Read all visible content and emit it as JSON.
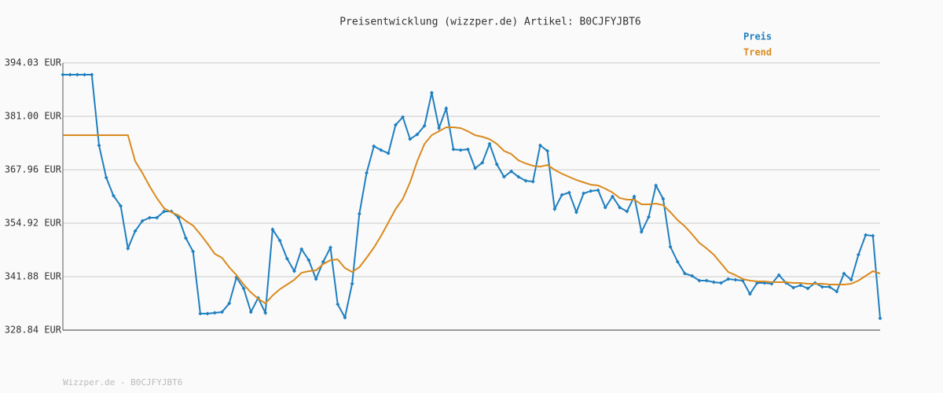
{
  "chart_data": {
    "type": "line",
    "title": "Preisentwicklung (wizzper.de) Artikel: B0CJFYJBT6",
    "footer": "Wizzper.de - B0CJFYJBT6",
    "ylim": [
      328.84,
      394.03
    ],
    "yticks": [
      {
        "value": 328.84,
        "label": "328.84 EUR"
      },
      {
        "value": 341.88,
        "label": "341.88 EUR"
      },
      {
        "value": 354.92,
        "label": "354.92 EUR"
      },
      {
        "value": 367.96,
        "label": "367.96 EUR"
      },
      {
        "value": 381.0,
        "label": "381.00 EUR"
      },
      {
        "value": 394.03,
        "label": "394.03 EUR"
      }
    ],
    "grid": true,
    "legend": "top-right",
    "series": [
      {
        "name": "Preis",
        "color": "#1f7fbf",
        "markers": true,
        "values": [
          391.15,
          391.15,
          391.15,
          391.15,
          391.15,
          373.9,
          366.04,
          361.63,
          359.13,
          348.78,
          353.0,
          355.49,
          356.26,
          356.26,
          357.79,
          357.79,
          356.26,
          351.27,
          348.01,
          332.86,
          332.86,
          333.06,
          333.25,
          335.36,
          341.68,
          339.0,
          333.25,
          336.7,
          333.06,
          353.38,
          350.7,
          346.29,
          343.22,
          348.59,
          345.9,
          341.3,
          345.52,
          348.97,
          335.17,
          331.91,
          340.15,
          357.22,
          367.19,
          373.71,
          372.75,
          371.98,
          378.88,
          380.8,
          375.43,
          376.58,
          378.69,
          386.74,
          378.12,
          382.91,
          372.94,
          372.75,
          372.94,
          368.34,
          369.68,
          374.28,
          369.3,
          366.23,
          367.57,
          366.23,
          365.27,
          365.08,
          373.9,
          372.56,
          358.37,
          361.82,
          362.39,
          357.6,
          362.2,
          362.78,
          362.97,
          358.75,
          361.43,
          358.75,
          357.79,
          361.43,
          352.81,
          356.45,
          364.12,
          360.86,
          349.16,
          345.52,
          342.64,
          342.07,
          340.92,
          340.92,
          340.53,
          340.34,
          341.3,
          341.11,
          340.92,
          337.66,
          340.34,
          340.34,
          340.15,
          342.26,
          340.34,
          339.19,
          339.77,
          339.0,
          340.34,
          339.38,
          339.38,
          338.23,
          342.64,
          341.11,
          347.25,
          352.04,
          351.85,
          331.71
        ]
      },
      {
        "name": "Trend",
        "color": "#d98a1f",
        "markers": false,
        "values": [
          376.39,
          376.39,
          376.39,
          376.39,
          376.39,
          376.39,
          376.39,
          376.39,
          376.39,
          376.39,
          370.06,
          367.19,
          363.93,
          361.05,
          358.56,
          357.6,
          356.83,
          355.49,
          354.34,
          352.23,
          349.93,
          347.44,
          346.48,
          344.18,
          342.26,
          339.96,
          338.04,
          336.51,
          335.36,
          337.28,
          338.81,
          339.96,
          341.11,
          342.84,
          343.22,
          343.41,
          344.94,
          345.9,
          346.09,
          343.99,
          343.03,
          344.18,
          346.48,
          348.97,
          351.85,
          355.11,
          358.37,
          360.86,
          364.89,
          370.06,
          374.28,
          376.39,
          377.35,
          378.31,
          378.31,
          378.12,
          377.35,
          376.39,
          376.01,
          375.43,
          374.28,
          372.56,
          371.79,
          370.25,
          369.49,
          368.91,
          368.72,
          369.11,
          367.95,
          366.99,
          366.23,
          365.46,
          364.89,
          364.31,
          364.12,
          363.36,
          362.39,
          361.05,
          360.67,
          360.67,
          359.52,
          359.52,
          359.71,
          359.33,
          357.6,
          355.68,
          354.15,
          352.23,
          350.12,
          348.78,
          347.25,
          345.14,
          343.03,
          342.26,
          341.3,
          340.92,
          340.73,
          340.73,
          340.53,
          340.53,
          340.53,
          340.34,
          340.34,
          340.15,
          340.15,
          340.15,
          339.96,
          339.96,
          339.96,
          340.15,
          340.92,
          342.07,
          343.22,
          342.64
        ]
      }
    ]
  }
}
